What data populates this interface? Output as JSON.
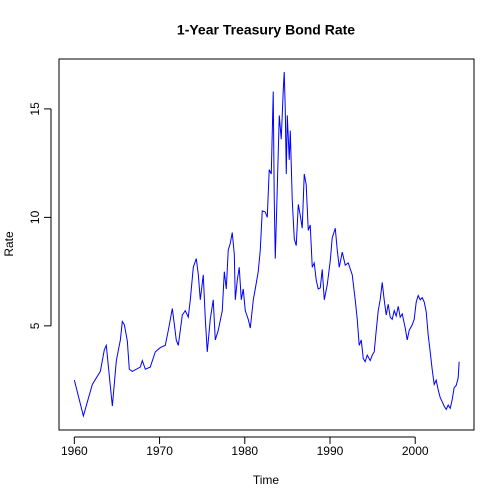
{
  "chart_data": {
    "type": "line",
    "title": "1-Year Treasury Bond Rate",
    "x_label": "Time",
    "y_label": "Rate",
    "xlim": [
      1958.2,
      2006.9
    ],
    "ylim": [
      0.2,
      17.3
    ],
    "xticks": [
      1960,
      1970,
      1980,
      1990,
      2000
    ],
    "yticks": [
      5,
      10,
      15
    ],
    "x": [
      1960.0,
      1961.06,
      1962.11,
      1963.05,
      1963.52,
      1963.75,
      1964.46,
      1964.93,
      1965.4,
      1965.63,
      1965.87,
      1966.22,
      1966.45,
      1966.8,
      1967.74,
      1967.98,
      1968.33,
      1968.91,
      1969.5,
      1970.09,
      1970.67,
      1971.03,
      1971.5,
      1971.96,
      1972.2,
      1972.67,
      1973.02,
      1973.37,
      1973.61,
      1973.96,
      1974.31,
      1974.55,
      1974.78,
      1975.13,
      1975.37,
      1975.6,
      1975.95,
      1976.3,
      1976.54,
      1976.89,
      1977.36,
      1977.6,
      1977.83,
      1978.06,
      1978.3,
      1978.53,
      1978.77,
      1978.89,
      1979.12,
      1979.35,
      1979.59,
      1979.82,
      1980.06,
      1980.41,
      1980.65,
      1981.0,
      1981.23,
      1981.58,
      1981.82,
      1982.05,
      1982.4,
      1982.64,
      1982.87,
      1983.11,
      1983.34,
      1983.46,
      1983.58,
      1983.81,
      1984.05,
      1984.28,
      1984.52,
      1984.63,
      1984.75,
      1984.87,
      1984.99,
      1985.22,
      1985.34,
      1985.57,
      1985.81,
      1986.04,
      1986.28,
      1986.51,
      1986.74,
      1986.98,
      1987.21,
      1987.45,
      1987.68,
      1987.92,
      1988.15,
      1988.39,
      1988.62,
      1988.86,
      1989.09,
      1989.33,
      1989.68,
      1990.03,
      1990.26,
      1990.62,
      1990.85,
      1991.09,
      1991.44,
      1991.79,
      1992.14,
      1992.61,
      1992.96,
      1993.2,
      1993.43,
      1993.67,
      1993.9,
      1994.13,
      1994.37,
      1994.72,
      1994.96,
      1995.19,
      1995.43,
      1995.66,
      1995.89,
      1996.13,
      1996.36,
      1996.6,
      1996.83,
      1997.07,
      1997.3,
      1997.54,
      1997.77,
      1998.01,
      1998.24,
      1998.48,
      1998.83,
      1999.06,
      1999.3,
      1999.65,
      1999.88,
      2000.12,
      2000.35,
      2000.59,
      2000.82,
      2001.06,
      2001.29,
      2001.52,
      2001.76,
      2001.99,
      2002.23,
      2002.46,
      2002.7,
      2002.93,
      2003.17,
      2003.4,
      2003.64,
      2003.87,
      2004.11,
      2004.34,
      2004.57,
      2004.81,
      2005.04,
      2005.16
    ],
    "series": [
      {
        "name": "Rate",
        "color": "#0000ff",
        "values": [
          2.5,
          0.85,
          2.3,
          2.9,
          3.9,
          4.1,
          1.3,
          3.4,
          4.35,
          5.2,
          5.05,
          4.3,
          3.0,
          2.9,
          3.1,
          3.4,
          3.0,
          3.1,
          3.8,
          4.0,
          4.1,
          4.8,
          5.8,
          4.35,
          4.1,
          5.5,
          5.7,
          5.4,
          6.2,
          7.7,
          8.1,
          7.35,
          6.2,
          7.35,
          5.3,
          3.8,
          5.3,
          6.2,
          4.35,
          4.8,
          5.7,
          7.5,
          6.7,
          8.5,
          8.8,
          9.3,
          8.3,
          6.2,
          7.1,
          7.7,
          6.2,
          6.7,
          5.7,
          5.3,
          4.9,
          6.2,
          6.7,
          7.5,
          8.5,
          10.3,
          10.25,
          10.0,
          12.2,
          12.0,
          15.8,
          10.8,
          8.1,
          11.3,
          14.7,
          13.6,
          15.9,
          16.7,
          15.0,
          12.0,
          14.7,
          12.65,
          14.0,
          10.8,
          9.0,
          8.7,
          10.6,
          10.1,
          9.5,
          12.0,
          11.5,
          9.4,
          9.65,
          7.7,
          7.9,
          7.1,
          6.7,
          6.75,
          7.6,
          6.2,
          6.9,
          8.0,
          9.05,
          9.5,
          8.5,
          7.7,
          8.4,
          7.8,
          7.9,
          7.35,
          6.2,
          5.3,
          4.1,
          4.35,
          3.5,
          3.35,
          3.65,
          3.4,
          3.65,
          3.8,
          4.8,
          5.7,
          6.2,
          7.0,
          6.2,
          5.5,
          6.0,
          5.4,
          5.3,
          5.7,
          5.45,
          5.9,
          5.4,
          5.55,
          4.9,
          4.35,
          4.8,
          5.05,
          5.3,
          6.1,
          6.4,
          6.2,
          6.3,
          6.1,
          5.65,
          4.6,
          3.8,
          3.0,
          2.3,
          2.5,
          2.05,
          1.7,
          1.5,
          1.3,
          1.15,
          1.35,
          1.2,
          1.6,
          2.15,
          2.25,
          2.6,
          3.35
        ]
      }
    ]
  }
}
